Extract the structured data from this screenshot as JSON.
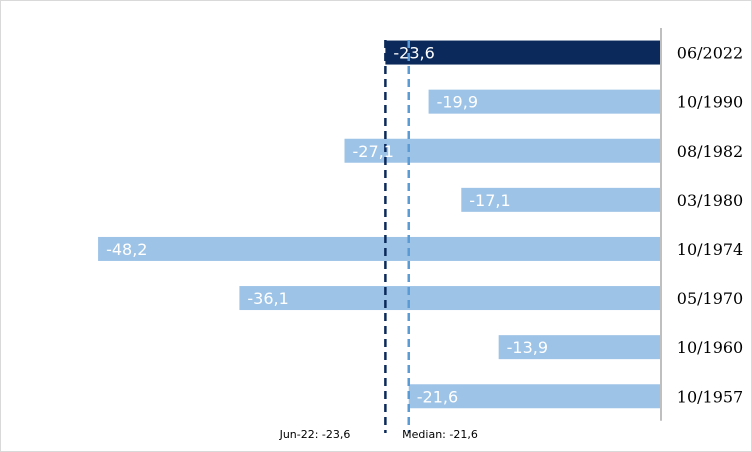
{
  "chart_data": {
    "type": "bar",
    "orientation": "horizontal",
    "categories": [
      "06/2022",
      "10/1990",
      "08/1982",
      "03/1980",
      "10/1974",
      "05/1970",
      "10/1960",
      "10/1957"
    ],
    "values": [
      -23.6,
      -19.9,
      -27.1,
      -17.1,
      -48.2,
      -36.1,
      -13.9,
      -21.6
    ],
    "value_labels": [
      "-23,6",
      "-19,9",
      "-27,1",
      "-17,1",
      "-48,2",
      "-36,1",
      "-13,9",
      "-21,6"
    ],
    "highlight_index": 0,
    "xlim": [
      -56,
      0
    ],
    "category_axis_position": "right",
    "grid": false,
    "reference_lines": [
      {
        "label": "Jun-22: -23,6",
        "value": -23.6,
        "color": "#0b2a5b",
        "style": "dashed"
      },
      {
        "label": "Median: -21,6",
        "value": -21.6,
        "color": "#5a9bd5",
        "style": "dashed"
      }
    ],
    "colors": {
      "highlight": "#0b2a5b",
      "bar": "#9dc3e6",
      "axis": "#bfbfbf"
    }
  }
}
